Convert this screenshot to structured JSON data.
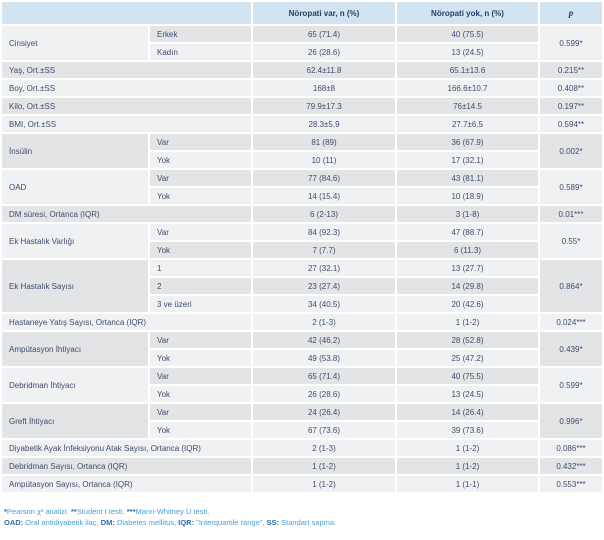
{
  "colors": {
    "header_bg": "#d2e4f1",
    "header_text": "#2c3d64",
    "text": "#3e4c70",
    "row_dark": "#e3e4e6",
    "row_light": "#f0f1f3",
    "footnote_blue": "#4ba0d3",
    "footnote_bold_blue": "#2d6da7"
  },
  "table": {
    "columns": [
      "Nöropati var, n (%)",
      "Nöropati yok, n (%)",
      "p"
    ],
    "groups": [
      {
        "label": "Cinsiyet",
        "p": "0.599*",
        "rows": [
          {
            "sub": "Erkek",
            "var": "65 (71.4)",
            "yok": "40 (75.5)"
          },
          {
            "sub": "Kadın",
            "var": "26 (28.6)",
            "yok": "13 (24.5)"
          }
        ]
      },
      {
        "label": "Yaş, Ort.±SS",
        "p": "0.215**",
        "rows": [
          {
            "sub": "",
            "var": "62.4±11.8",
            "yok": "65.1±13.6"
          }
        ]
      },
      {
        "label": "Boy, Ort.±SS",
        "p": "0.408**",
        "rows": [
          {
            "sub": "",
            "var": "168±8",
            "yok": "166.6±10.7"
          }
        ]
      },
      {
        "label": "Kilo, Ort.±SS",
        "p": "0.197**",
        "rows": [
          {
            "sub": "",
            "var": "79.9±17.3",
            "yok": "76±14.5"
          }
        ]
      },
      {
        "label": "BMI, Ort.±SS",
        "p": "0.594**",
        "rows": [
          {
            "sub": "",
            "var": "28.3±5.9",
            "yok": "27.7±6.5"
          }
        ]
      },
      {
        "label": "İnsülin",
        "p": "0.002*",
        "rows": [
          {
            "sub": "Var",
            "var": "81 (89)",
            "yok": "36 (67.9)"
          },
          {
            "sub": "Yok",
            "var": "10 (11)",
            "yok": "17 (32.1)"
          }
        ]
      },
      {
        "label": "OAD",
        "p": "0.589*",
        "rows": [
          {
            "sub": "Var",
            "var": "77 (84.6)",
            "yok": "43 (81.1)"
          },
          {
            "sub": "Yok",
            "var": "14 (15.4)",
            "yok": "10 (18.9)"
          }
        ]
      },
      {
        "label": "DM süresi, Ortanca (IQR)",
        "p": "0.01***",
        "rows": [
          {
            "sub": "",
            "var": "6 (2-13)",
            "yok": "3 (1-8)"
          }
        ]
      },
      {
        "label": "Ek Hastalık Varlığı",
        "p": "0.55*",
        "rows": [
          {
            "sub": "Var",
            "var": "84 (92.3)",
            "yok": "47 (88.7)"
          },
          {
            "sub": "Yok",
            "var": "7 (7.7)",
            "yok": "6 (11.3)"
          }
        ]
      },
      {
        "label": "Ek Hastalık Sayısı",
        "p": "0.864*",
        "rows": [
          {
            "sub": "1",
            "var": "27 (32.1)",
            "yok": "13 (27.7)"
          },
          {
            "sub": "2",
            "var": "23 (27.4)",
            "yok": "14 (29.8)"
          },
          {
            "sub": "3 ve üzeri",
            "var": "34 (40.5)",
            "yok": "20 (42.6)"
          }
        ]
      },
      {
        "label": "Hastaneye Yatış Sayısı, Ortanca (IQR)",
        "p": "0.024***",
        "rows": [
          {
            "sub": "",
            "var": "2 (1-3)",
            "yok": "1 (1-2)"
          }
        ]
      },
      {
        "label": "Ampütasyon İhtiyacı",
        "p": "0.439*",
        "rows": [
          {
            "sub": "Var",
            "var": "42 (46.2)",
            "yok": "28 (52.8)"
          },
          {
            "sub": "Yok",
            "var": "49 (53.8)",
            "yok": "25 (47.2)"
          }
        ]
      },
      {
        "label": "Debridman İhtiyacı",
        "p": "0.599*",
        "rows": [
          {
            "sub": "Var",
            "var": "65 (71.4)",
            "yok": "40 (75.5)"
          },
          {
            "sub": "Yok",
            "var": "26 (28.6)",
            "yok": "13 (24.5)"
          }
        ]
      },
      {
        "label": "Greft İhtiyacı",
        "p": "0.996*",
        "rows": [
          {
            "sub": "Var",
            "var": "24 (26.4)",
            "yok": "14 (26.4)"
          },
          {
            "sub": "Yok",
            "var": "67 (73.6)",
            "yok": "39 (73.6)"
          }
        ]
      },
      {
        "label": "Diyabetik Ayak İnfeksiyonu Atak Sayısı, Ortanca (IQR)",
        "p": "0.086***",
        "rows": [
          {
            "sub": "",
            "var": "2 (1-3)",
            "yok": "1 (1-2)"
          }
        ]
      },
      {
        "label": "Debridman Sayısı, Ortanca (IQR)",
        "p": "0.432***",
        "rows": [
          {
            "sub": "",
            "var": "1 (1-2)",
            "yok": "1 (1-2)"
          }
        ]
      },
      {
        "label": "Ampütasyon Sayısı, Ortanca (IQR)",
        "p": "0.553***",
        "rows": [
          {
            "sub": "",
            "var": "1 (1-2)",
            "yok": "1 (1-1)"
          }
        ]
      }
    ]
  },
  "footnotes": {
    "line1": [
      {
        "b": "*"
      },
      {
        "t": "Pearson χ² analizi. "
      },
      {
        "b": "**"
      },
      {
        "t": "Student t testi. "
      },
      {
        "b": "***"
      },
      {
        "t": "Mann-Whitney U testi."
      }
    ],
    "line2": [
      {
        "b": "OAD:"
      },
      {
        "t": " Oral antidiyabetik ilaç, "
      },
      {
        "b": "DM:"
      },
      {
        "t": " Diabetes mellitus, "
      },
      {
        "b": "IQR:"
      },
      {
        "t": " \"Interquartile range\", "
      },
      {
        "b": "SS:"
      },
      {
        "t": " Standart sapma."
      }
    ]
  }
}
